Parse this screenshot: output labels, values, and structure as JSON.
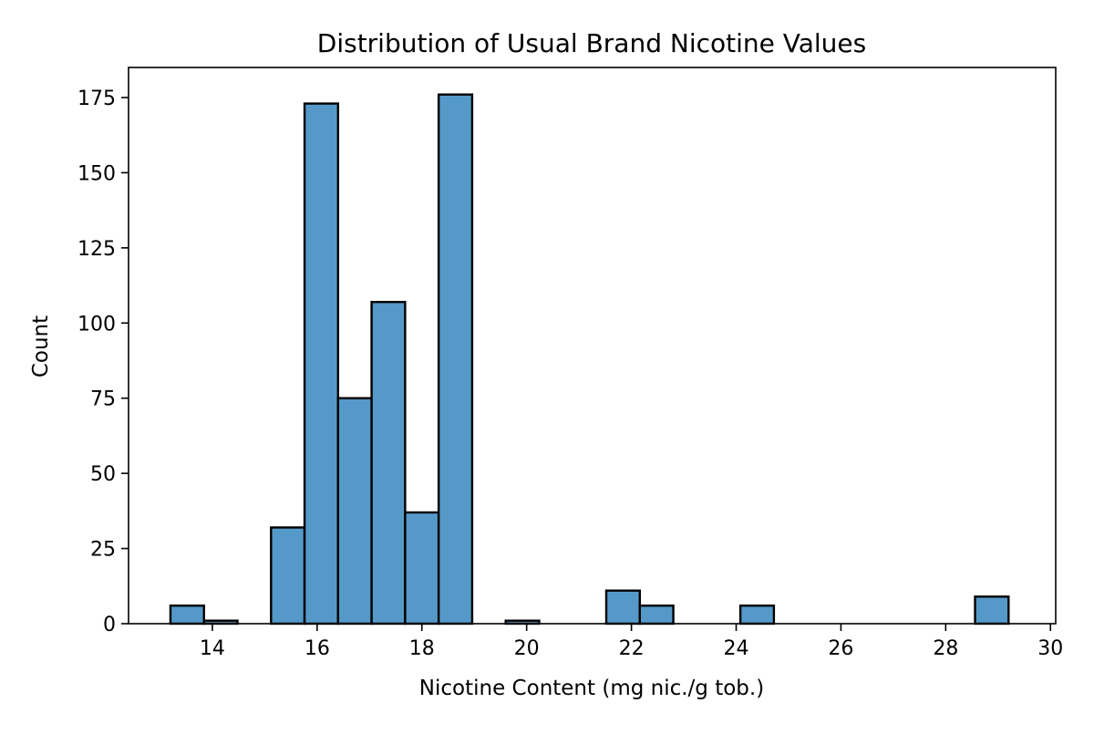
{
  "chart_data": {
    "type": "bar",
    "title": "Distribution of Usual Brand Nicotine Values",
    "xlabel": "Nicotine Content (mg nic./g tob.)",
    "ylabel": "Count",
    "xlim": [
      12.4,
      30.1
    ],
    "ylim": [
      0,
      185
    ],
    "xticks": [
      14,
      16,
      18,
      20,
      22,
      24,
      26,
      28,
      30
    ],
    "yticks": [
      0,
      25,
      50,
      75,
      100,
      125,
      150,
      175
    ],
    "bar_color": "#5599c8",
    "edge_color": "#000000",
    "grid": false,
    "bins": [
      {
        "x0": 13.2,
        "x1": 13.84,
        "count": 6
      },
      {
        "x0": 13.84,
        "x1": 14.48,
        "count": 1
      },
      {
        "x0": 14.48,
        "x1": 15.12,
        "count": 0
      },
      {
        "x0": 15.12,
        "x1": 15.76,
        "count": 32
      },
      {
        "x0": 15.76,
        "x1": 16.4,
        "count": 173
      },
      {
        "x0": 16.4,
        "x1": 17.04,
        "count": 75
      },
      {
        "x0": 17.04,
        "x1": 17.68,
        "count": 107
      },
      {
        "x0": 17.68,
        "x1": 18.32,
        "count": 37
      },
      {
        "x0": 18.32,
        "x1": 18.96,
        "count": 176
      },
      {
        "x0": 18.96,
        "x1": 19.6,
        "count": 0
      },
      {
        "x0": 19.6,
        "x1": 20.24,
        "count": 1
      },
      {
        "x0": 20.24,
        "x1": 20.88,
        "count": 0
      },
      {
        "x0": 20.88,
        "x1": 21.52,
        "count": 0
      },
      {
        "x0": 21.52,
        "x1": 22.16,
        "count": 11
      },
      {
        "x0": 22.16,
        "x1": 22.8,
        "count": 6
      },
      {
        "x0": 22.8,
        "x1": 23.44,
        "count": 0
      },
      {
        "x0": 23.44,
        "x1": 24.08,
        "count": 0
      },
      {
        "x0": 24.08,
        "x1": 24.72,
        "count": 6
      },
      {
        "x0": 24.72,
        "x1": 25.36,
        "count": 0
      },
      {
        "x0": 25.36,
        "x1": 26.0,
        "count": 0
      },
      {
        "x0": 26.0,
        "x1": 26.64,
        "count": 0
      },
      {
        "x0": 26.64,
        "x1": 27.28,
        "count": 0
      },
      {
        "x0": 27.28,
        "x1": 27.92,
        "count": 0
      },
      {
        "x0": 27.92,
        "x1": 28.56,
        "count": 0
      },
      {
        "x0": 28.56,
        "x1": 29.2,
        "count": 9
      }
    ]
  }
}
